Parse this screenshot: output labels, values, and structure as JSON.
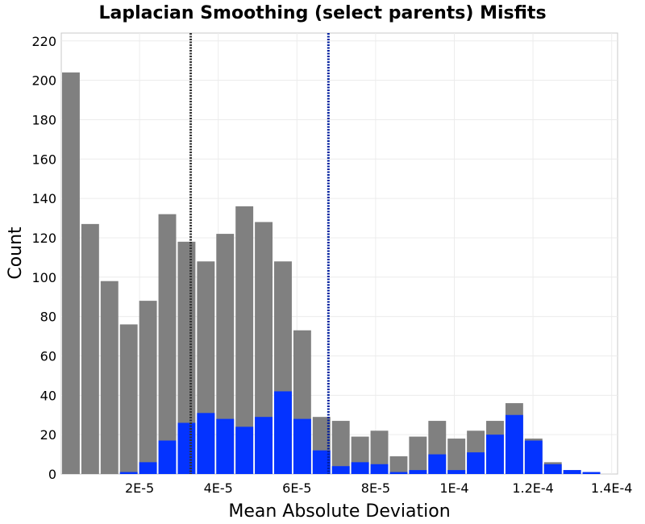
{
  "chart_data": {
    "type": "bar",
    "title": "Laplacian Smoothing (select parents) Misfits",
    "xlabel": "Mean Absolute Deviation",
    "ylabel": "Count",
    "xlim": [
      1e-07,
      0.0001415
    ],
    "ylim": [
      0,
      224
    ],
    "x_ticks": [
      {
        "value": 2e-05,
        "label": "2E-5"
      },
      {
        "value": 4e-05,
        "label": "4E-5"
      },
      {
        "value": 6e-05,
        "label": "6E-5"
      },
      {
        "value": 8e-05,
        "label": "8E-5"
      },
      {
        "value": 0.0001,
        "label": "1E-4"
      },
      {
        "value": 0.00012,
        "label": "1.2E-4"
      },
      {
        "value": 0.00014,
        "label": "1.4E-4"
      }
    ],
    "y_ticks": [
      {
        "value": 0,
        "label": "0"
      },
      {
        "value": 20,
        "label": "20"
      },
      {
        "value": 40,
        "label": "40"
      },
      {
        "value": 60,
        "label": "60"
      },
      {
        "value": 80,
        "label": "80"
      },
      {
        "value": 100,
        "label": "100"
      },
      {
        "value": 120,
        "label": "120"
      },
      {
        "value": 140,
        "label": "140"
      },
      {
        "value": 160,
        "label": "160"
      },
      {
        "value": 180,
        "label": "180"
      },
      {
        "value": 200,
        "label": "200"
      },
      {
        "value": 220,
        "label": "220"
      }
    ],
    "bin_start": 1e-07,
    "bin_width": 4.9e-06,
    "series": [
      {
        "color": "#808080",
        "values": [
          204,
          127,
          98,
          76,
          88,
          132,
          118,
          108,
          122,
          136,
          128,
          108,
          73,
          29,
          27,
          19,
          22,
          9,
          19,
          27,
          18,
          22,
          27,
          36,
          18,
          6,
          2,
          1
        ]
      },
      {
        "color": "#0433ff",
        "values": [
          0,
          0,
          0,
          1,
          6,
          17,
          26,
          31,
          28,
          24,
          29,
          42,
          28,
          12,
          4,
          6,
          5,
          1,
          2,
          10,
          2,
          11,
          20,
          30,
          17,
          5,
          2,
          1
        ]
      }
    ],
    "reference_lines": [
      {
        "x": 3.3e-05,
        "color": "#333333"
      },
      {
        "x": 6.8e-05,
        "color": "#001f9e"
      }
    ],
    "grid": true
  }
}
